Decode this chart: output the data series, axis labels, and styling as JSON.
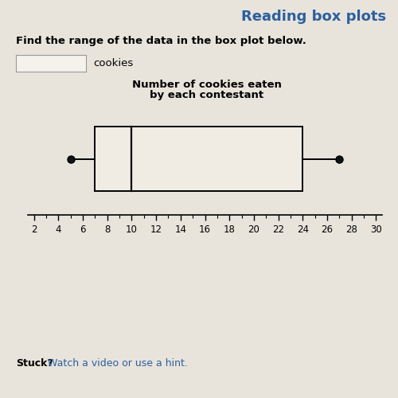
{
  "title": "Reading box plots",
  "title_color": "#2c5f9e",
  "question_text": "Find the range of the data in the box plot below.",
  "answer_box_label": "cookies",
  "chart_title_line1": "Number of cookies eaten",
  "chart_title_line2": "by each contestant",
  "whisker_min": 5,
  "q1": 7,
  "median": 10,
  "q3": 24,
  "whisker_max": 27,
  "xmin": 2,
  "xmax": 30,
  "xtick_step": 2,
  "stuck_text": "Stuck?",
  "stuck_link": " Watch a video or use a hint.",
  "stuck_color": "#2c5f9e",
  "background_color": "#e8e4dc",
  "box_facecolor": "#f0ece4",
  "box_edgecolor": "#000000",
  "median_color": "#000000",
  "whisker_color": "#000000",
  "dot_color": "#000000",
  "answer_box_color": "#f5f2ec"
}
